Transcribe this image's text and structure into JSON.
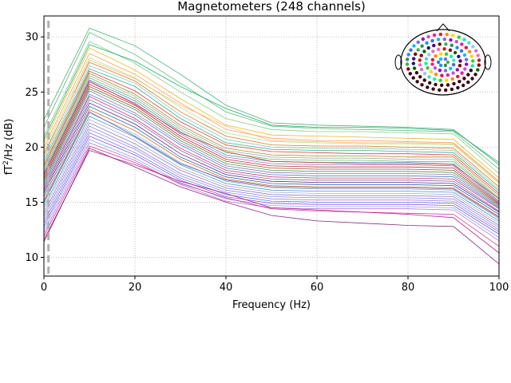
{
  "chart_data": {
    "type": "line",
    "title": "Magnetometers (248 channels)",
    "xlabel": "Frequency (Hz)",
    "ylabel_prefix": "fT",
    "ylabel_sup": "2",
    "ylabel_suffix": "/Hz (dB)",
    "xlim": [
      0,
      100
    ],
    "ylim": [
      8.3,
      31.9
    ],
    "x_ticks": [
      "0",
      "20",
      "40",
      "60",
      "80",
      "100"
    ],
    "y_ticks": [
      "10",
      "15",
      "20",
      "25",
      "30"
    ],
    "grid": true,
    "grid_style": "dotted",
    "marker_line_x": 1,
    "channel_count": 248,
    "x": [
      0,
      10,
      20,
      30,
      40,
      50,
      60,
      70,
      80,
      90,
      100
    ],
    "series": [
      {
        "color": "#2ca25f",
        "values": [
          22.5,
          30.8,
          29.2,
          26.6,
          23.8,
          22.2,
          22.0,
          21.9,
          21.8,
          21.6,
          18.4
        ]
      },
      {
        "color": "#41ab5d",
        "values": [
          21.8,
          30.4,
          28.4,
          25.8,
          23.2,
          21.9,
          21.7,
          21.6,
          21.5,
          21.4,
          18.0
        ]
      },
      {
        "color": "#74c476",
        "values": [
          21.0,
          29.6,
          27.6,
          25.0,
          22.6,
          21.6,
          21.4,
          21.4,
          21.3,
          21.2,
          17.6
        ]
      },
      {
        "color": "#e6ab02",
        "values": [
          20.4,
          29.0,
          27.0,
          24.4,
          22.0,
          21.1,
          21.0,
          20.9,
          20.8,
          20.7,
          17.2
        ]
      },
      {
        "color": "#fd8d3c",
        "values": [
          20.0,
          28.5,
          26.6,
          24.0,
          21.6,
          20.8,
          20.6,
          20.6,
          20.5,
          20.4,
          16.9
        ]
      },
      {
        "color": "#a6d96a",
        "values": [
          19.7,
          28.1,
          26.3,
          23.6,
          21.3,
          20.5,
          20.4,
          20.3,
          20.3,
          20.2,
          16.7
        ]
      },
      {
        "color": "#d95f02",
        "values": [
          19.4,
          27.7,
          26.0,
          23.2,
          21.0,
          20.2,
          20.1,
          20.1,
          20.0,
          19.9,
          16.4
        ]
      },
      {
        "color": "#66c2a5",
        "values": [
          19.0,
          27.4,
          25.8,
          22.9,
          20.7,
          20.0,
          19.9,
          19.9,
          19.8,
          19.7,
          16.2
        ]
      },
      {
        "color": "#1b9e77",
        "values": [
          18.7,
          27.1,
          25.5,
          22.6,
          20.4,
          19.8,
          19.7,
          19.7,
          19.6,
          19.5,
          16.0
        ]
      },
      {
        "color": "#e41a1c",
        "values": [
          18.4,
          26.9,
          25.1,
          22.3,
          20.2,
          19.6,
          19.5,
          19.4,
          19.4,
          19.3,
          15.8
        ]
      },
      {
        "color": "#808000",
        "values": [
          18.2,
          26.7,
          24.8,
          22.0,
          19.9,
          19.3,
          19.2,
          19.2,
          19.1,
          19.1,
          15.6
        ]
      },
      {
        "color": "#999999",
        "values": [
          18.0,
          26.5,
          24.6,
          21.8,
          19.7,
          19.1,
          19.0,
          19.0,
          18.9,
          18.9,
          15.4
        ]
      },
      {
        "color": "#4daf4a",
        "values": [
          17.8,
          26.3,
          24.4,
          21.6,
          19.5,
          18.9,
          18.8,
          18.8,
          18.7,
          18.7,
          15.3
        ]
      },
      {
        "color": "#377eb8",
        "values": [
          17.6,
          26.1,
          24.2,
          21.4,
          19.3,
          18.7,
          18.6,
          18.6,
          18.6,
          18.5,
          15.1
        ]
      },
      {
        "color": "#984ea3",
        "values": [
          17.4,
          25.9,
          24.0,
          21.2,
          19.1,
          18.5,
          18.4,
          18.4,
          18.4,
          18.3,
          15.0
        ]
      },
      {
        "color": "#a50f15",
        "values": [
          17.2,
          25.7,
          23.8,
          21.0,
          18.9,
          18.3,
          18.2,
          18.2,
          18.2,
          18.1,
          14.9
        ]
      },
      {
        "color": "#8c2d04",
        "values": [
          17.0,
          25.5,
          23.6,
          20.8,
          18.7,
          18.1,
          18.0,
          18.0,
          18.0,
          17.9,
          14.8
        ]
      },
      {
        "color": "#238b45",
        "values": [
          16.8,
          25.3,
          23.4,
          20.6,
          18.5,
          17.9,
          17.8,
          17.8,
          17.8,
          17.7,
          14.7
        ]
      },
      {
        "color": "#8856a7",
        "values": [
          16.6,
          25.1,
          23.1,
          20.4,
          18.3,
          17.7,
          17.6,
          17.6,
          17.6,
          17.5,
          14.6
        ]
      },
      {
        "color": "#2171b5",
        "values": [
          16.4,
          24.8,
          22.9,
          20.2,
          18.1,
          17.5,
          17.4,
          17.4,
          17.4,
          17.3,
          14.5
        ]
      },
      {
        "color": "#ce1256",
        "values": [
          16.2,
          24.6,
          22.6,
          19.9,
          17.9,
          17.3,
          17.2,
          17.2,
          17.2,
          17.1,
          14.4
        ]
      },
      {
        "color": "#6a51a3",
        "values": [
          16.0,
          24.3,
          22.4,
          19.7,
          17.7,
          17.1,
          17.0,
          17.0,
          17.0,
          16.9,
          14.2
        ]
      },
      {
        "color": "#3f007d",
        "values": [
          15.8,
          24.0,
          22.1,
          19.4,
          17.5,
          16.9,
          16.8,
          16.8,
          16.8,
          16.7,
          14.1
        ]
      },
      {
        "color": "#08519c",
        "values": [
          15.5,
          23.7,
          21.8,
          19.1,
          17.3,
          16.7,
          16.6,
          16.6,
          16.6,
          16.5,
          13.9
        ]
      },
      {
        "color": "#cc4c02",
        "values": [
          15.2,
          23.4,
          21.5,
          18.9,
          17.1,
          16.5,
          16.4,
          16.4,
          16.4,
          16.3,
          13.7
        ]
      },
      {
        "color": "#6baed6",
        "values": [
          14.9,
          23.1,
          21.2,
          18.6,
          16.9,
          16.3,
          16.2,
          16.2,
          16.2,
          16.1,
          13.5
        ]
      },
      {
        "color": "#3182bd",
        "values": [
          14.6,
          22.8,
          20.9,
          18.4,
          16.7,
          16.1,
          16.0,
          16.0,
          16.0,
          15.9,
          13.3
        ]
      },
      {
        "color": "#9e9ac8",
        "values": [
          14.3,
          22.5,
          20.6,
          18.1,
          16.5,
          15.9,
          15.8,
          15.8,
          15.8,
          15.7,
          13.1
        ]
      },
      {
        "color": "#756bb1",
        "values": [
          14.0,
          22.2,
          20.3,
          17.9,
          16.3,
          15.7,
          15.6,
          15.6,
          15.6,
          15.5,
          12.9
        ]
      },
      {
        "color": "#7b68ee",
        "values": [
          13.7,
          21.9,
          20.0,
          17.6,
          16.1,
          15.5,
          15.4,
          15.4,
          15.4,
          15.3,
          12.7
        ]
      },
      {
        "color": "#9370db",
        "values": [
          13.4,
          21.6,
          19.8,
          17.4,
          15.9,
          15.3,
          15.2,
          15.2,
          15.2,
          15.1,
          12.5
        ]
      },
      {
        "color": "#4169e1",
        "values": [
          13.1,
          21.3,
          19.5,
          17.2,
          15.7,
          15.1,
          15.0,
          15.0,
          15.0,
          14.9,
          12.3
        ]
      },
      {
        "color": "#8a2be2",
        "values": [
          12.8,
          21.0,
          19.3,
          17.0,
          15.5,
          14.9,
          14.8,
          14.8,
          14.8,
          14.7,
          12.1
        ]
      },
      {
        "color": "#6495ed",
        "values": [
          12.5,
          20.7,
          19.0,
          16.8,
          15.3,
          14.7,
          14.6,
          14.6,
          14.6,
          14.5,
          11.8
        ]
      },
      {
        "color": "#ba55d3",
        "values": [
          12.2,
          20.4,
          18.8,
          16.6,
          15.1,
          14.5,
          14.4,
          14.4,
          14.4,
          14.3,
          11.5
        ]
      },
      {
        "color": "#c51b7d",
        "values": [
          11.9,
          20.1,
          18.6,
          16.7,
          15.4,
          14.4,
          14.2,
          14.1,
          14.0,
          13.9,
          11.0
        ]
      },
      {
        "color": "#ae017e",
        "values": [
          11.6,
          19.7,
          18.4,
          16.9,
          15.8,
          14.5,
          14.3,
          14.1,
          13.9,
          13.6,
          10.4
        ]
      },
      {
        "color": "#7a0177",
        "values": [
          11.4,
          19.9,
          18.2,
          16.4,
          15.0,
          13.8,
          13.3,
          13.1,
          12.9,
          12.8,
          9.4
        ]
      },
      {
        "color": "#d73027",
        "values": [
          17.5,
          26.0,
          23.9,
          21.3,
          19.6,
          18.7,
          18.6,
          18.5,
          18.5,
          18.4,
          15.3
        ]
      },
      {
        "color": "#fdae61",
        "values": [
          19.2,
          27.9,
          26.2,
          23.8,
          21.9,
          20.6,
          20.5,
          20.4,
          20.4,
          20.3,
          16.8
        ]
      },
      {
        "color": "#00a65a",
        "values": [
          20.7,
          29.3,
          27.8,
          25.5,
          23.5,
          22.0,
          21.8,
          21.8,
          21.7,
          21.5,
          18.6
        ]
      },
      {
        "color": "#5e3c99",
        "values": [
          15.0,
          23.2,
          21.0,
          18.5,
          17.0,
          16.4,
          16.3,
          16.3,
          16.3,
          16.2,
          13.6
        ]
      }
    ],
    "sensor_colors": [
      "#3cb44b",
      "#2e8b57",
      "#1e90ff",
      "#4169e1",
      "#00bfff",
      "#7b68ee",
      "#9400d3",
      "#ba55d3",
      "#ff1493",
      "#dc143c",
      "#ff8c00",
      "#ffd700",
      "#32cd32",
      "#00fa9a",
      "#40e0d0",
      "#87cefa",
      "#da70d6",
      "#ff69b4",
      "#b22222",
      "#8b0000",
      "#006400",
      "#191970",
      "#4b0082",
      "#800000"
    ]
  }
}
